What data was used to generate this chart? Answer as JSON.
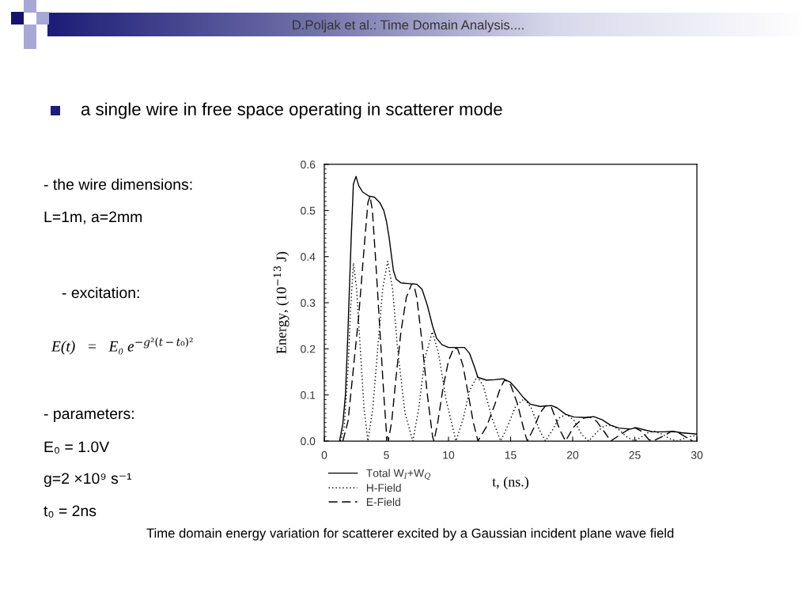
{
  "chart_data": {
    "type": "line",
    "title": "a single wire in free space operating in scatterer mode",
    "xlabel": "t, (ns.)",
    "ylabel": "Energy, (10$^{−13}$ J)",
    "xlim": [
      0,
      30
    ],
    "ylim": [
      0,
      0.6
    ],
    "xticks": [
      0,
      5,
      10,
      15,
      20,
      25,
      30
    ],
    "yticks": [
      {
        "value": 0,
        "label": "0.0"
      },
      0.1,
      0.2,
      0.3,
      0.4,
      0.5,
      0.6
    ],
    "legend": "bottom left",
    "series": [
      {
        "name": "Total W$_{I}$+W$_{Q}$",
        "color": "#000000",
        "line_style": "solid",
        "x": [
          1.23,
          1.49,
          1.7,
          1.87,
          2.02,
          2.17,
          2.34,
          2.55,
          2.77,
          3.09,
          3.6,
          4.04,
          4.47,
          4.79,
          5.0,
          5.21,
          5.43,
          5.57,
          5.79,
          6.17,
          7.02,
          7.45,
          7.87,
          8.3,
          8.72,
          9.04,
          9.47,
          10.0,
          10.6,
          11.28,
          11.7,
          12.1,
          12.37,
          13.06,
          13.74,
          14.42,
          15.0,
          15.56,
          16.01,
          16.58,
          17.37,
          18.29,
          18.74,
          19.42,
          20.1,
          21.0,
          21.7,
          22.38,
          23.06,
          23.74,
          24.65,
          25.1,
          25.8,
          26.47,
          27.38,
          28.06,
          28.75,
          30
        ],
        "values": [
          0,
          0.037,
          0.1,
          0.214,
          0.33,
          0.443,
          0.557,
          0.574,
          0.554,
          0.54,
          0.531,
          0.529,
          0.517,
          0.5,
          0.477,
          0.443,
          0.397,
          0.369,
          0.351,
          0.343,
          0.341,
          0.34,
          0.329,
          0.294,
          0.249,
          0.223,
          0.209,
          0.203,
          0.203,
          0.203,
          0.19,
          0.16,
          0.138,
          0.132,
          0.133,
          0.135,
          0.127,
          0.11,
          0.095,
          0.08,
          0.075,
          0.077,
          0.072,
          0.058,
          0.052,
          0.051,
          0.053,
          0.046,
          0.034,
          0.028,
          0.026,
          0.029,
          0.024,
          0.02,
          0.02,
          0.021,
          0.018,
          0.015
        ]
      },
      {
        "name": "H-Field",
        "color": "#000000",
        "line_style": "dotted",
        "x": [
          1.3,
          1.6,
          1.9,
          2.1,
          2.34,
          2.6,
          2.9,
          3.2,
          3.51,
          3.9,
          4.3,
          4.7,
          5.1,
          5.5,
          5.9,
          6.5,
          7.13,
          7.6,
          8.1,
          8.7,
          9.2,
          9.8,
          10.6,
          11.2,
          11.7,
          12.3,
          12.8,
          13.5,
          14.2,
          14.8,
          15.4,
          16.1,
          16.7,
          17.3,
          17.8,
          18.4,
          18.9,
          19.5,
          20.1,
          20.7,
          21.3,
          21.9,
          22.5,
          23.1,
          23.7,
          24.4,
          25.0,
          25.6,
          26.1,
          26.6,
          27.2,
          27.8,
          28.4,
          29.0,
          29.5,
          30
        ],
        "values": [
          0,
          0.03,
          0.15,
          0.28,
          0.386,
          0.33,
          0.2,
          0.07,
          0,
          0.07,
          0.2,
          0.33,
          0.39,
          0.33,
          0.2,
          0.06,
          0,
          0.07,
          0.18,
          0.237,
          0.19,
          0.09,
          0,
          0.05,
          0.11,
          0.14,
          0.12,
          0.05,
          0,
          0.035,
          0.075,
          0.092,
          0.07,
          0.025,
          0,
          0.025,
          0.05,
          0.058,
          0.045,
          0.015,
          0,
          0.018,
          0.032,
          0.035,
          0.025,
          0.008,
          0,
          0.01,
          0.019,
          0.021,
          0.015,
          0.005,
          0,
          0.006,
          0.01,
          0.012
        ]
      },
      {
        "name": "E-Field",
        "color": "#000000",
        "line_style": "dashed",
        "x": [
          1.49,
          1.91,
          2.34,
          2.77,
          3.19,
          3.51,
          3.68,
          3.87,
          4.15,
          4.47,
          4.79,
          5.0,
          5.15,
          5.43,
          5.74,
          6.17,
          6.6,
          7.02,
          7.19,
          7.45,
          7.87,
          8.3,
          8.72,
          8.83,
          9.15,
          9.57,
          10.0,
          10.43,
          10.74,
          11.17,
          11.6,
          12.0,
          12.37,
          13.06,
          13.74,
          14.19,
          14.53,
          15.0,
          15.56,
          16.13,
          16.35,
          16.92,
          17.37,
          17.83,
          18.29,
          18.97,
          19.42,
          20.1,
          20.79,
          21.36,
          21.92,
          22.6,
          23.06,
          23.74,
          24.42,
          24.99,
          25.56,
          26.13,
          26.47,
          27.38,
          27.95,
          28.52,
          29.66
        ],
        "values": [
          0,
          0.043,
          0.157,
          0.271,
          0.414,
          0.517,
          0.531,
          0.5,
          0.386,
          0.243,
          0.1,
          0.02,
          0,
          0.043,
          0.129,
          0.237,
          0.311,
          0.34,
          0.341,
          0.311,
          0.214,
          0.1,
          0.009,
          0,
          0.043,
          0.117,
          0.174,
          0.202,
          0.2,
          0.163,
          0.1,
          0.04,
          0,
          0.031,
          0.08,
          0.116,
          0.133,
          0.122,
          0.08,
          0.018,
          0,
          0.031,
          0.061,
          0.077,
          0.073,
          0.024,
          0,
          0.031,
          0.049,
          0.052,
          0.043,
          0.018,
          0,
          0.012,
          0.024,
          0.029,
          0.021,
          0.003,
          0,
          0.012,
          0.021,
          0.018,
          0
        ]
      }
    ],
    "annotations": [
      "D.Poljak et al.: Time Domain Analysis....",
      "- the wire dimensions:",
      "L=1m, a=2mm",
      "- excitation:",
      "E(t)   =   E₀ e$^{−g²(t−t₀)²}$",
      "- parameters:",
      "E₀ = 1.0V",
      "g=2 ×10⁹ s⁻¹",
      "t₀ = 2ns",
      "Time domain energy variation for scatterer excited by a Gaussian incident plane wave field"
    ]
  }
}
